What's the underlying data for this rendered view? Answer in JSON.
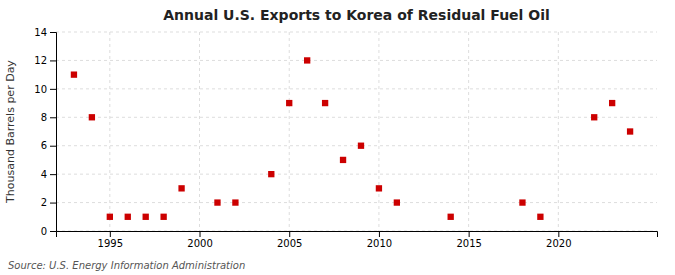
{
  "chart_data": {
    "type": "scatter",
    "title": "Annual U.S. Exports to Korea of Residual Fuel Oil",
    "ylabel": "Thousand Barrels per Day",
    "annotations": [
      "Source: U.S. Energy Information Administration"
    ],
    "color": "#cc0000",
    "marker": "square",
    "grid": true,
    "xlim": [
      1992,
      2025.5
    ],
    "ylim": [
      0,
      14
    ],
    "xticks": [
      1995,
      2000,
      2005,
      2010,
      2015,
      2020
    ],
    "yticks": [
      0,
      2,
      4,
      6,
      8,
      10,
      12,
      14
    ],
    "x": [
      1993,
      1994,
      1995,
      1996,
      1997,
      1998,
      1999,
      2001,
      2002,
      2004,
      2005,
      2006,
      2007,
      2008,
      2009,
      2010,
      2011,
      2014,
      2018,
      2019,
      2022,
      2023,
      2024
    ],
    "values": [
      11,
      8,
      1,
      1,
      1,
      1,
      3,
      2,
      2,
      4,
      9,
      12,
      9,
      5,
      6,
      3,
      2,
      1,
      2,
      1,
      8,
      9,
      7
    ]
  }
}
